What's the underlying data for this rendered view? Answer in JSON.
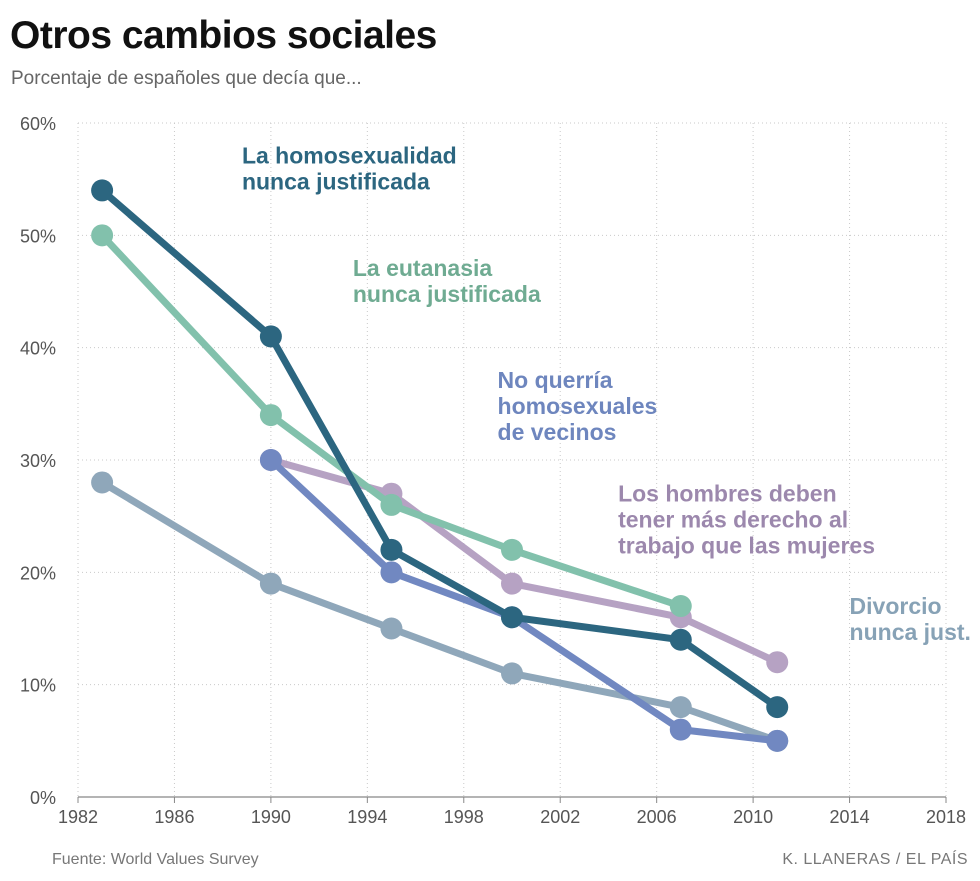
{
  "header": {
    "title": "Otros cambios sociales",
    "subtitle": "Porcentaje de españoles que decía que..."
  },
  "footer": {
    "source": "Fuente: World Values Survey",
    "credit": "K. LLANERAS  /  EL PAÍS"
  },
  "chart_data": {
    "type": "line",
    "title": "Otros cambios sociales",
    "subtitle": "Porcentaje de españoles que decía que...",
    "xlabel": "",
    "ylabel": "",
    "xlim": [
      1982,
      2018
    ],
    "ylim": [
      0,
      60
    ],
    "x_ticks": [
      1982,
      1986,
      1990,
      1994,
      1998,
      2002,
      2006,
      2010,
      2014,
      2018
    ],
    "y_ticks": [
      0,
      10,
      20,
      30,
      40,
      50,
      60
    ],
    "y_tick_labels": [
      "0%",
      "10%",
      "20%",
      "30%",
      "40%",
      "50%",
      "60%"
    ],
    "grid": true,
    "series": [
      {
        "name": "Divorcio nunca just.",
        "label_lines": [
          "Divorcio",
          "nunca just."
        ],
        "color": "#8fa7ba",
        "x": [
          1983,
          1990,
          1995,
          2000,
          2007,
          2011
        ],
        "values": [
          28,
          19,
          15,
          11,
          8,
          5
        ]
      },
      {
        "name": "Los hombres deben tener más derecho al trabajo que las mujeres",
        "label_lines": [
          "Los hombres deben",
          "tener más derecho al",
          "trabajo que las mujeres"
        ],
        "color": "#b6a2c3",
        "x": [
          1990,
          1995,
          2000,
          2007,
          2011
        ],
        "values": [
          30,
          27,
          19,
          16,
          12
        ]
      },
      {
        "name": "La eutanasia nunca justificada",
        "label_lines": [
          "La eutanasia",
          "nunca justificada"
        ],
        "color": "#82c1ac",
        "x": [
          1983,
          1990,
          1995,
          2000,
          2007
        ],
        "values": [
          50,
          34,
          26,
          22,
          17
        ]
      },
      {
        "name": "No querría homosexuales de vecinos",
        "label_lines": [
          "No querría",
          "homosexuales",
          "de vecinos"
        ],
        "color": "#7188c1",
        "x": [
          1990,
          1995,
          2000,
          2007,
          2011
        ],
        "values": [
          30,
          20,
          16,
          6,
          5
        ]
      },
      {
        "name": "La homosexualidad nunca justificada",
        "label_lines": [
          "La homosexualidad",
          "nunca justificada"
        ],
        "color": "#2c6680",
        "x": [
          1983,
          1990,
          1995,
          2000,
          2007,
          2011
        ],
        "values": [
          54,
          41,
          22,
          16,
          14,
          8
        ]
      }
    ],
    "annotation_colors": {
      "La homosexualidad nunca justificada": "#2c6680",
      "La eutanasia nunca justificada": "#6fab92",
      "No querría homosexuales de vecinos": "#6e86be",
      "Los hombres deben tener más derecho al trabajo que las mujeres": "#9c88ad",
      "Divorcio nunca just.": "#87a2b6"
    }
  }
}
